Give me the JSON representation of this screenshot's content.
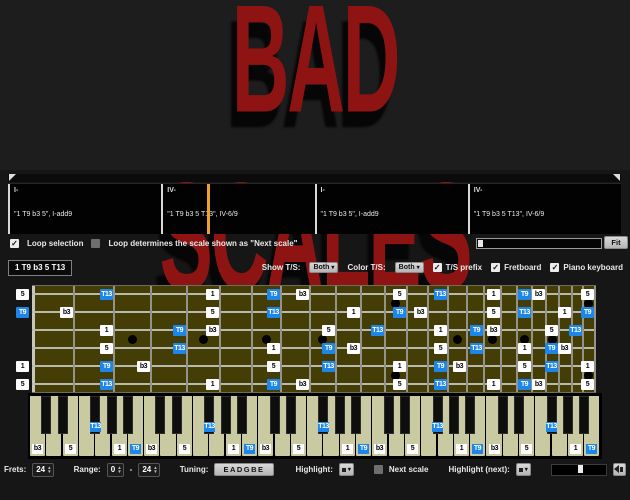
{
  "title": "BAD SCALES",
  "timeline": {
    "playhead_fraction": 0.324,
    "cells": [
      {
        "numeral": "I-",
        "scale": "\"1 T9 b3 5\", I-add9"
      },
      {
        "numeral": "IV-",
        "scale": "\"1 T9 b3 5 T13\", IV-6/9"
      },
      {
        "numeral": "I-",
        "scale": "\"1 T9 b3 5\", I-add9"
      },
      {
        "numeral": "IV-",
        "scale": "\"1 T9 b3 5 T13\", IV-6/9"
      }
    ]
  },
  "loop_bar": {
    "loop_selection_label": "Loop selection",
    "loop_selection_checked": true,
    "loop_determines_label": "Loop determines the scale shown as \"Next scale\"",
    "loop_determines_checked": false,
    "fit_button": "Fit"
  },
  "scale_info": {
    "current_scale": "1 T9 b3 5 T13"
  },
  "view_options": {
    "show_ts_label": "Show T/S:",
    "show_ts_value": "Both",
    "color_ts_label": "Color T/S:",
    "color_ts_value": "Both",
    "ts_prefix_label": "T/S prefix",
    "ts_prefix_checked": true,
    "fretboard_label": "Fretboard",
    "fretboard_checked": true,
    "piano_label": "Piano keyboard",
    "piano_checked": true
  },
  "fretboard": {
    "fret_count": 24,
    "tuning_top_to_bottom": [
      "E",
      "B",
      "G",
      "D",
      "A",
      "E"
    ],
    "open_pitch_classes": [
      4,
      11,
      7,
      2,
      9,
      4
    ],
    "scale_degrees": [
      {
        "pitch_class": 9,
        "label": "1",
        "tension": false
      },
      {
        "pitch_class": 11,
        "label": "T9",
        "tension": true
      },
      {
        "pitch_class": 0,
        "label": "b3",
        "tension": false
      },
      {
        "pitch_class": 4,
        "label": "5",
        "tension": false
      },
      {
        "pitch_class": 6,
        "label": "T13",
        "tension": true
      }
    ],
    "inlay_single_frets": [
      3,
      5,
      7,
      9,
      15,
      17,
      19,
      21
    ],
    "inlay_double_frets": [
      12,
      24
    ]
  },
  "piano": {
    "octaves": 5,
    "start_note": "C"
  },
  "bottom_bar": {
    "frets_label": "Frets:",
    "frets_value": "24",
    "range_label": "Range:",
    "range_from": "0",
    "range_to": "24",
    "tuning_label": "Tuning:",
    "tuning_value": "EADGBE",
    "highlight_label": "Highlight:",
    "next_scale_label": "Next scale",
    "next_scale_checked": false,
    "highlight_next_label": "Highlight (next):"
  },
  "colors": {
    "title_red": "#8e1414",
    "tension_blue": "#1d86e8",
    "chord_tone_white": "#ffffff",
    "board_olive": "#443d05",
    "playhead_orange": "#eda32a",
    "piano_key": "#c9c9a2"
  }
}
